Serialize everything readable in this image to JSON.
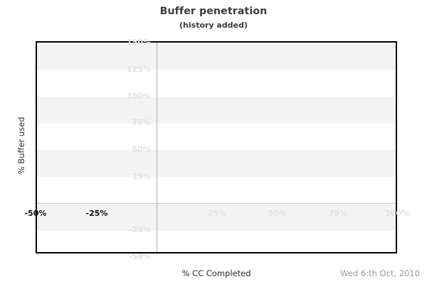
{
  "chart_data": {
    "type": "line",
    "title": "Buffer penetration",
    "subtitle": "(history added)",
    "xlabel": "% CC Completed",
    "ylabel": "% Buffer used",
    "date_annotation": "Wed 6:th Oct, 2010",
    "xlim": [
      -50,
      100
    ],
    "ylim": [
      -47,
      150
    ],
    "x_ticks_history": [
      "-50%",
      "-25%"
    ],
    "x_ticks_future": [
      "25%",
      "50%",
      "75%",
      "100%"
    ],
    "y_ticks": [
      "150%",
      "125%",
      "100%",
      "75%",
      "50%",
      "25%",
      "-25%",
      "-50%"
    ],
    "series": [],
    "legend": "none",
    "grid": "alternating horizontal 25%-tall bands; zero cross-hair lines at x=0 and y=0",
    "colors": {
      "band": "#f3f3f3",
      "muted_label": "#e2e2e2",
      "history_label": "#111111",
      "axis_frame": "#000000",
      "zero_line_vertical": "#b0b0b0",
      "zero_line_horizontal": "#c9c9c9",
      "title_text": "#3b3b3b",
      "date_text": "#999999"
    }
  }
}
